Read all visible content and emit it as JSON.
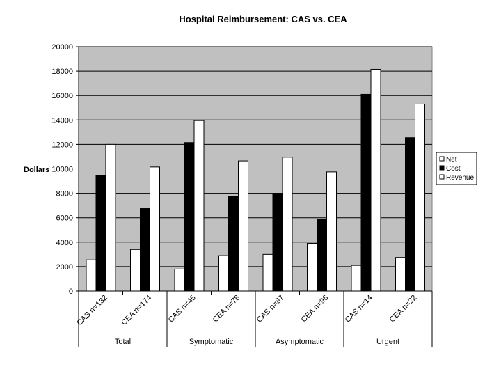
{
  "chart_data": {
    "type": "bar",
    "title": "Hospital Reimbursement: CAS vs. CEA",
    "ylabel": "Dollars",
    "xlabel": "",
    "ylim": [
      0,
      20000
    ],
    "yticks": [
      0,
      2000,
      4000,
      6000,
      8000,
      10000,
      12000,
      14000,
      16000,
      18000,
      20000
    ],
    "grid": true,
    "legend_position": "right",
    "categories": [
      "CAS n=132",
      "CEA n=174",
      "CAS n=45",
      "CEA n=78",
      "CAS n=87",
      "CEA n=96",
      "CAS n=14",
      "CEA n=22"
    ],
    "groups": [
      {
        "label": "Total",
        "categories": [
          "CAS n=132",
          "CEA n=174"
        ]
      },
      {
        "label": "Symptomatic",
        "categories": [
          "CAS n=45",
          "CEA n=78"
        ]
      },
      {
        "label": "Asymptomatic",
        "categories": [
          "CAS n=87",
          "CEA n=96"
        ]
      },
      {
        "label": "Urgent",
        "categories": [
          "CAS n=14",
          "CEA n=22"
        ]
      }
    ],
    "series": [
      {
        "name": "Net",
        "color": "#ffffff",
        "values": [
          2550,
          3400,
          1800,
          2900,
          3000,
          3900,
          2100,
          2750
        ]
      },
      {
        "name": "Cost",
        "color": "#000000",
        "values": [
          9450,
          6750,
          12150,
          7750,
          8000,
          5850,
          16100,
          12550
        ]
      },
      {
        "name": "Revenue",
        "color": "#ffffff",
        "values": [
          12000,
          10150,
          13950,
          10650,
          10950,
          9750,
          18150,
          15300
        ]
      }
    ],
    "plot_background": "#c0c0c0"
  }
}
